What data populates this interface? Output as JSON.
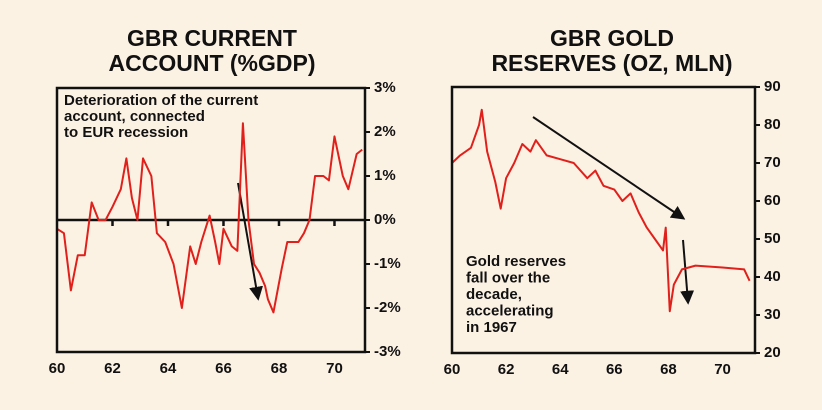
{
  "chart_data": [
    {
      "type": "line",
      "title": [
        "GBR CURRENT",
        "ACCOUNT (%GDP)"
      ],
      "annotation": [
        "Deterioration of the current",
        "account, connected",
        "to EUR recession"
      ],
      "series": [
        {
          "color": "#e0201b",
          "x": [
            60.0,
            60.25,
            60.5,
            60.75,
            61.0,
            61.25,
            61.5,
            61.75,
            62.0,
            62.3,
            62.5,
            62.7,
            62.9,
            63.1,
            63.4,
            63.6,
            63.9,
            64.2,
            64.5,
            64.8,
            65.0,
            65.2,
            65.5,
            65.7,
            65.85,
            66.0,
            66.3,
            66.5,
            66.7,
            66.9,
            67.1,
            67.3,
            67.5,
            67.6,
            67.8,
            68.1,
            68.3,
            68.5,
            68.7,
            68.9,
            69.1,
            69.3,
            69.6,
            69.8,
            70.0,
            70.3,
            70.5,
            70.8,
            71.0
          ],
          "values": [
            -0.2,
            -0.3,
            -1.6,
            -0.8,
            -0.8,
            0.4,
            0.0,
            0.0,
            0.3,
            0.7,
            1.4,
            0.5,
            0.0,
            1.4,
            1.0,
            -0.3,
            -0.5,
            -1.0,
            -2.0,
            -0.6,
            -1.0,
            -0.5,
            0.1,
            -0.5,
            -1.0,
            -0.2,
            -0.6,
            -0.7,
            2.2,
            0.0,
            -1.0,
            -1.2,
            -1.5,
            -1.8,
            -2.1,
            -1.1,
            -0.5,
            -0.5,
            -0.5,
            -0.3,
            0.0,
            1.0,
            1.0,
            0.9,
            1.9,
            1.0,
            0.7,
            1.5,
            1.6
          ]
        }
      ],
      "xlim": [
        60,
        71.1
      ],
      "xticks": [
        60,
        62,
        64,
        66,
        68,
        70
      ],
      "ylim": [
        -3,
        3
      ],
      "yticks": [
        {
          "value": 3,
          "label": "3%"
        },
        {
          "value": 2,
          "label": "2%"
        },
        {
          "value": 1,
          "label": "1%"
        },
        {
          "value": 0,
          "label": "0%"
        },
        {
          "value": -1,
          "label": "-1%"
        },
        {
          "value": -2,
          "label": "-2%"
        },
        {
          "value": -3,
          "label": "-3%"
        }
      ]
    },
    {
      "type": "line",
      "title": [
        "GBR GOLD",
        "RESERVES (OZ, MLN)"
      ],
      "annotation": [
        "Gold reserves",
        "fall over the",
        "decade,",
        "accelerating",
        "in 1967"
      ],
      "series": [
        {
          "color": "#e0201b",
          "x": [
            60.0,
            60.3,
            60.7,
            61.0,
            61.1,
            61.3,
            61.6,
            61.8,
            62.0,
            62.3,
            62.6,
            62.9,
            63.1,
            63.5,
            64.0,
            64.5,
            65.0,
            65.3,
            65.6,
            66.0,
            66.3,
            66.6,
            66.9,
            67.2,
            67.5,
            67.8,
            67.9,
            68.05,
            68.2,
            68.5,
            69.0,
            70.0,
            70.8,
            71.0
          ],
          "values": [
            70,
            72,
            74,
            80,
            84,
            73,
            65,
            58,
            66,
            70,
            75,
            73,
            76,
            72,
            71,
            70,
            66,
            68,
            64,
            63,
            60,
            62,
            57,
            53,
            50,
            47,
            53,
            31,
            38,
            42,
            43,
            42.5,
            42,
            39
          ]
        }
      ],
      "xlim": [
        60,
        71.2
      ],
      "xticks": [
        60,
        62,
        64,
        66,
        68,
        70
      ],
      "ylim": [
        20,
        90
      ],
      "yticks": [
        90,
        80,
        70,
        60,
        50,
        40,
        30,
        20
      ]
    }
  ]
}
